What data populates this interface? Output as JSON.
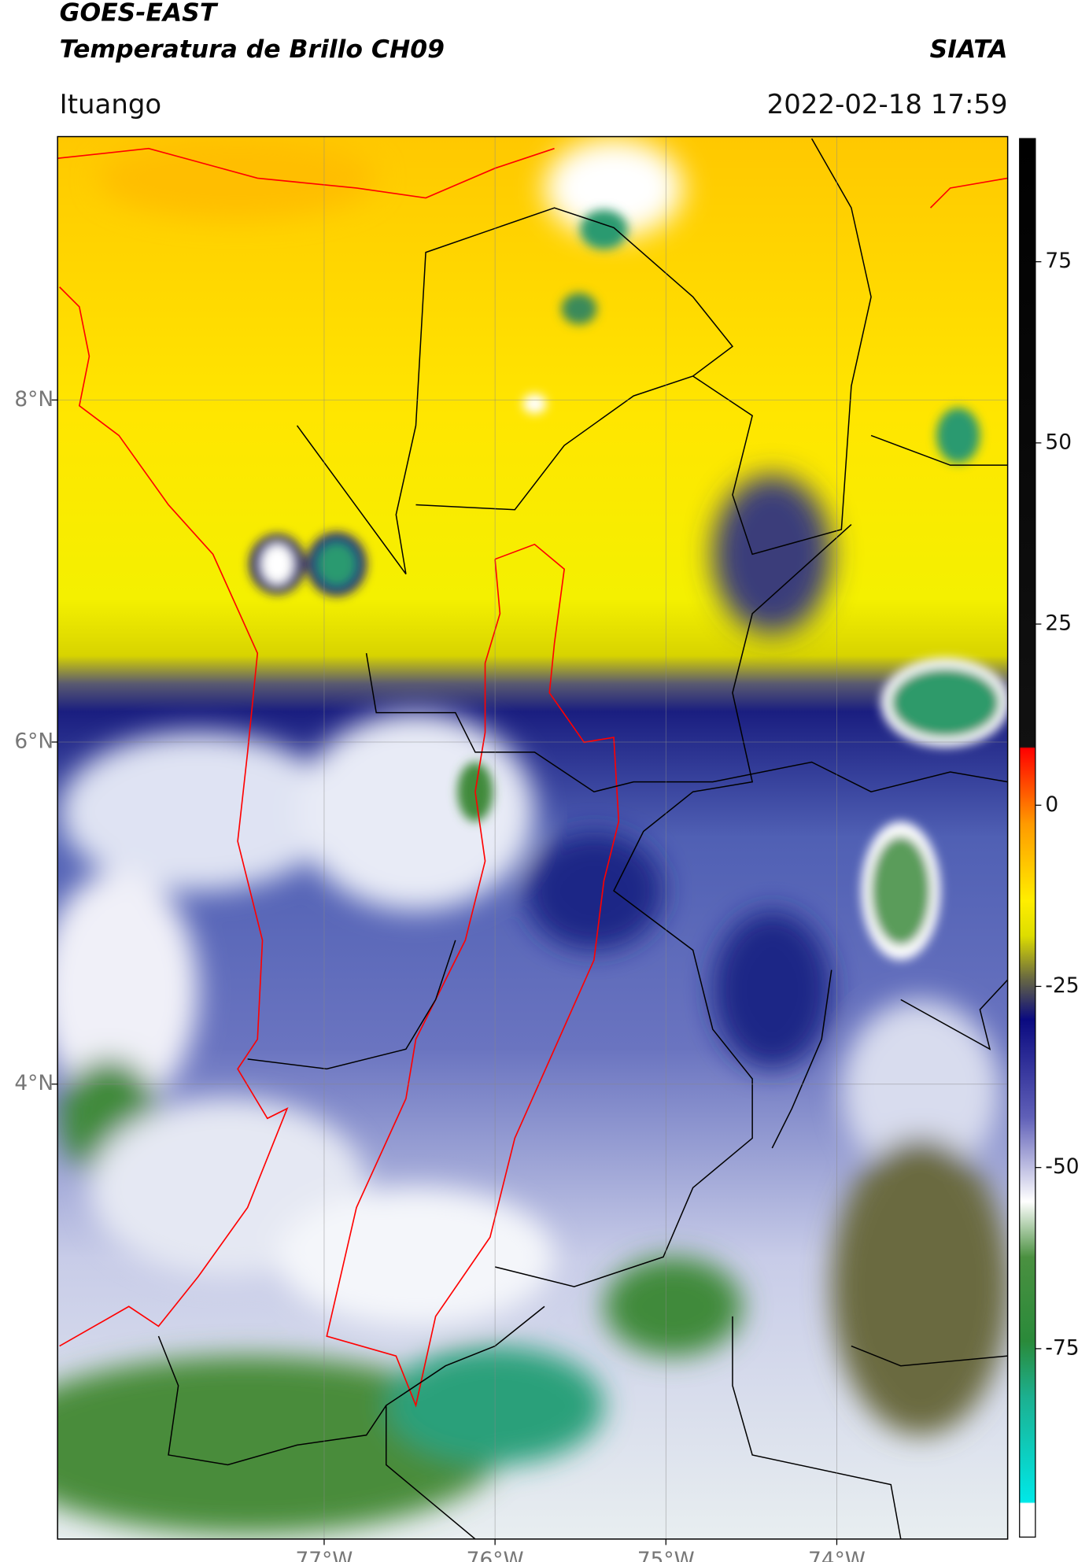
{
  "header": {
    "title": "GOES-EAST",
    "subtitle": "Temperatura de Brillo CH09",
    "agency": "SIATA",
    "location": "Ituango",
    "timestamp": "2022-02-18 17:59"
  },
  "map": {
    "xlim": [
      -78.56,
      -73.0
    ],
    "ylim": [
      1.34,
      9.54
    ],
    "xticks": [
      {
        "value": -77,
        "label": "77°W"
      },
      {
        "value": -76,
        "label": "76°W"
      },
      {
        "value": -75,
        "label": "75°W"
      },
      {
        "value": -74,
        "label": "74°W"
      }
    ],
    "yticks": [
      {
        "value": 8,
        "label": "8°N"
      },
      {
        "value": 6,
        "label": "6°N"
      },
      {
        "value": 4,
        "label": "4°N"
      }
    ],
    "grid": true
  },
  "colorbar": {
    "lim": [
      -101,
      92
    ],
    "ticks": [
      75,
      50,
      25,
      0,
      -25,
      -50,
      -75
    ]
  }
}
